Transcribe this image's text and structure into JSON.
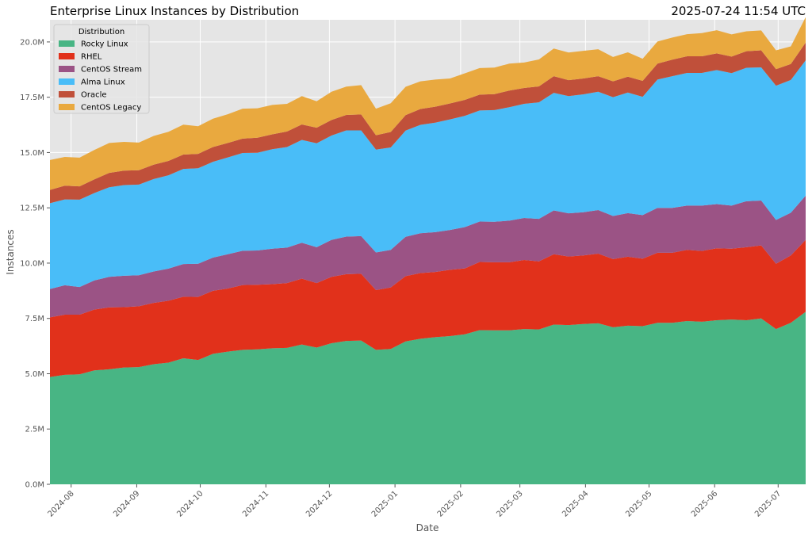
{
  "chart_data": {
    "type": "area",
    "stacked": true,
    "title": "Enterprise Linux Instances by Distribution",
    "timestamp": "2025-07-24 11:54 UTC",
    "xlabel": "Date",
    "ylabel": "Instances",
    "x_range": [
      "2024-07-22",
      "2025-07-14"
    ],
    "ylim": [
      0,
      21000000
    ],
    "y_ticks": [
      0,
      2500000,
      5000000,
      7500000,
      10000000,
      12500000,
      15000000,
      17500000,
      20000000
    ],
    "y_tick_labels": [
      "0.0M",
      "2.5M",
      "5.0M",
      "7.5M",
      "10.0M",
      "12.5M",
      "15.0M",
      "17.5M",
      "20.0M"
    ],
    "x_ticks": [
      "2024-08-01",
      "2024-09-01",
      "2024-10-01",
      "2024-11-01",
      "2024-12-01",
      "2025-01-01",
      "2025-02-01",
      "2025-03-01",
      "2025-04-01",
      "2025-05-01",
      "2025-06-01",
      "2025-07-01"
    ],
    "x_tick_labels": [
      "2024-08",
      "2024-09",
      "2024-10",
      "2024-11",
      "2024-12",
      "2025-01",
      "2025-02",
      "2025-03",
      "2025-04",
      "2025-05",
      "2025-06",
      "2025-07"
    ],
    "grid": true,
    "legend": {
      "title": "Distribution",
      "position": "top-left"
    },
    "x": [
      "2024-07-22",
      "2024-07-29",
      "2024-08-05",
      "2024-08-12",
      "2024-08-19",
      "2024-08-26",
      "2024-09-02",
      "2024-09-09",
      "2024-09-16",
      "2024-09-23",
      "2024-09-30",
      "2024-10-07",
      "2024-10-14",
      "2024-10-21",
      "2024-10-28",
      "2024-11-04",
      "2024-11-11",
      "2024-11-18",
      "2024-11-25",
      "2024-12-02",
      "2024-12-09",
      "2024-12-16",
      "2024-12-23",
      "2024-12-30",
      "2025-01-06",
      "2025-01-13",
      "2025-01-20",
      "2025-01-27",
      "2025-02-03",
      "2025-02-10",
      "2025-02-17",
      "2025-02-24",
      "2025-03-03",
      "2025-03-10",
      "2025-03-17",
      "2025-03-24",
      "2025-03-31",
      "2025-04-07",
      "2025-04-14",
      "2025-04-21",
      "2025-04-28",
      "2025-05-05",
      "2025-05-12",
      "2025-05-19",
      "2025-05-26",
      "2025-06-02",
      "2025-06-09",
      "2025-06-16",
      "2025-06-23",
      "2025-06-30",
      "2025-07-07",
      "2025-07-14"
    ],
    "series": [
      {
        "name": "Rocky Linux",
        "color": "#48b584",
        "values": [
          4.85,
          4.95,
          4.97,
          5.15,
          5.2,
          5.28,
          5.3,
          5.43,
          5.5,
          5.7,
          5.62,
          5.9,
          6.0,
          6.08,
          6.1,
          6.15,
          6.17,
          6.32,
          6.18,
          6.38,
          6.48,
          6.5,
          6.08,
          6.12,
          6.46,
          6.58,
          6.65,
          6.7,
          6.78,
          6.97,
          6.96,
          6.96,
          7.02,
          7.0,
          7.22,
          7.2,
          7.25,
          7.28,
          7.1,
          7.17,
          7.15,
          7.3,
          7.3,
          7.38,
          7.35,
          7.42,
          7.45,
          7.42,
          7.5,
          7.02,
          7.3,
          7.8
        ]
      },
      {
        "name": "RHEL",
        "color": "#e1311b",
        "values": [
          2.7,
          2.72,
          2.7,
          2.75,
          2.8,
          2.73,
          2.75,
          2.77,
          2.8,
          2.78,
          2.85,
          2.85,
          2.85,
          2.93,
          2.92,
          2.9,
          2.93,
          2.98,
          2.92,
          3.0,
          3.02,
          3.02,
          2.7,
          2.78,
          2.95,
          2.97,
          2.95,
          3.0,
          2.98,
          3.08,
          3.08,
          3.08,
          3.12,
          3.08,
          3.18,
          3.1,
          3.1,
          3.15,
          3.08,
          3.12,
          3.05,
          3.17,
          3.17,
          3.22,
          3.2,
          3.25,
          3.2,
          3.3,
          3.3,
          2.95,
          3.05,
          3.25
        ]
      },
      {
        "name": "CentOS Stream",
        "color": "#9b5385",
        "values": [
          1.28,
          1.33,
          1.25,
          1.32,
          1.38,
          1.42,
          1.4,
          1.42,
          1.45,
          1.48,
          1.5,
          1.5,
          1.55,
          1.55,
          1.55,
          1.6,
          1.6,
          1.62,
          1.62,
          1.67,
          1.7,
          1.7,
          1.7,
          1.7,
          1.78,
          1.8,
          1.8,
          1.8,
          1.87,
          1.83,
          1.83,
          1.88,
          1.9,
          1.92,
          1.98,
          1.95,
          1.95,
          1.97,
          1.95,
          1.97,
          1.97,
          2.03,
          2.03,
          2.0,
          2.05,
          2.0,
          1.95,
          2.08,
          2.03,
          1.98,
          1.93,
          2.0
        ]
      },
      {
        "name": "Alma Linux",
        "color": "#49bdf8",
        "values": [
          3.88,
          3.88,
          3.95,
          3.95,
          4.05,
          4.1,
          4.1,
          4.18,
          4.22,
          4.3,
          4.32,
          4.33,
          4.38,
          4.42,
          4.42,
          4.5,
          4.55,
          4.65,
          4.7,
          4.72,
          4.8,
          4.78,
          4.65,
          4.63,
          4.8,
          4.9,
          4.95,
          5.0,
          5.03,
          5.02,
          5.05,
          5.13,
          5.16,
          5.27,
          5.32,
          5.3,
          5.33,
          5.35,
          5.37,
          5.45,
          5.35,
          5.8,
          5.95,
          6.0,
          6.0,
          6.06,
          5.99,
          6.03,
          6.02,
          6.07,
          6.0,
          6.12
        ]
      },
      {
        "name": "Oracle",
        "color": "#c0503a",
        "values": [
          0.6,
          0.62,
          0.6,
          0.62,
          0.65,
          0.65,
          0.65,
          0.65,
          0.65,
          0.65,
          0.65,
          0.67,
          0.65,
          0.65,
          0.68,
          0.67,
          0.7,
          0.7,
          0.7,
          0.7,
          0.7,
          0.72,
          0.65,
          0.7,
          0.7,
          0.72,
          0.72,
          0.72,
          0.72,
          0.72,
          0.72,
          0.75,
          0.72,
          0.72,
          0.75,
          0.72,
          0.72,
          0.7,
          0.72,
          0.72,
          0.72,
          0.72,
          0.75,
          0.75,
          0.75,
          0.75,
          0.75,
          0.75,
          0.77,
          0.75,
          0.72,
          0.8
        ]
      },
      {
        "name": "CentOS Legacy",
        "color": "#e9a93f",
        "values": [
          1.35,
          1.3,
          1.3,
          1.33,
          1.35,
          1.3,
          1.25,
          1.3,
          1.32,
          1.35,
          1.25,
          1.28,
          1.3,
          1.35,
          1.33,
          1.33,
          1.25,
          1.28,
          1.2,
          1.28,
          1.28,
          1.33,
          1.2,
          1.3,
          1.28,
          1.25,
          1.23,
          1.13,
          1.2,
          1.2,
          1.2,
          1.22,
          1.15,
          1.22,
          1.25,
          1.25,
          1.25,
          1.22,
          1.1,
          1.1,
          1.0,
          1.0,
          1.0,
          1.0,
          1.05,
          1.05,
          1.0,
          0.9,
          0.9,
          0.85,
          0.8,
          1.15
        ]
      }
    ],
    "value_unit_multiplier": 1000000
  }
}
